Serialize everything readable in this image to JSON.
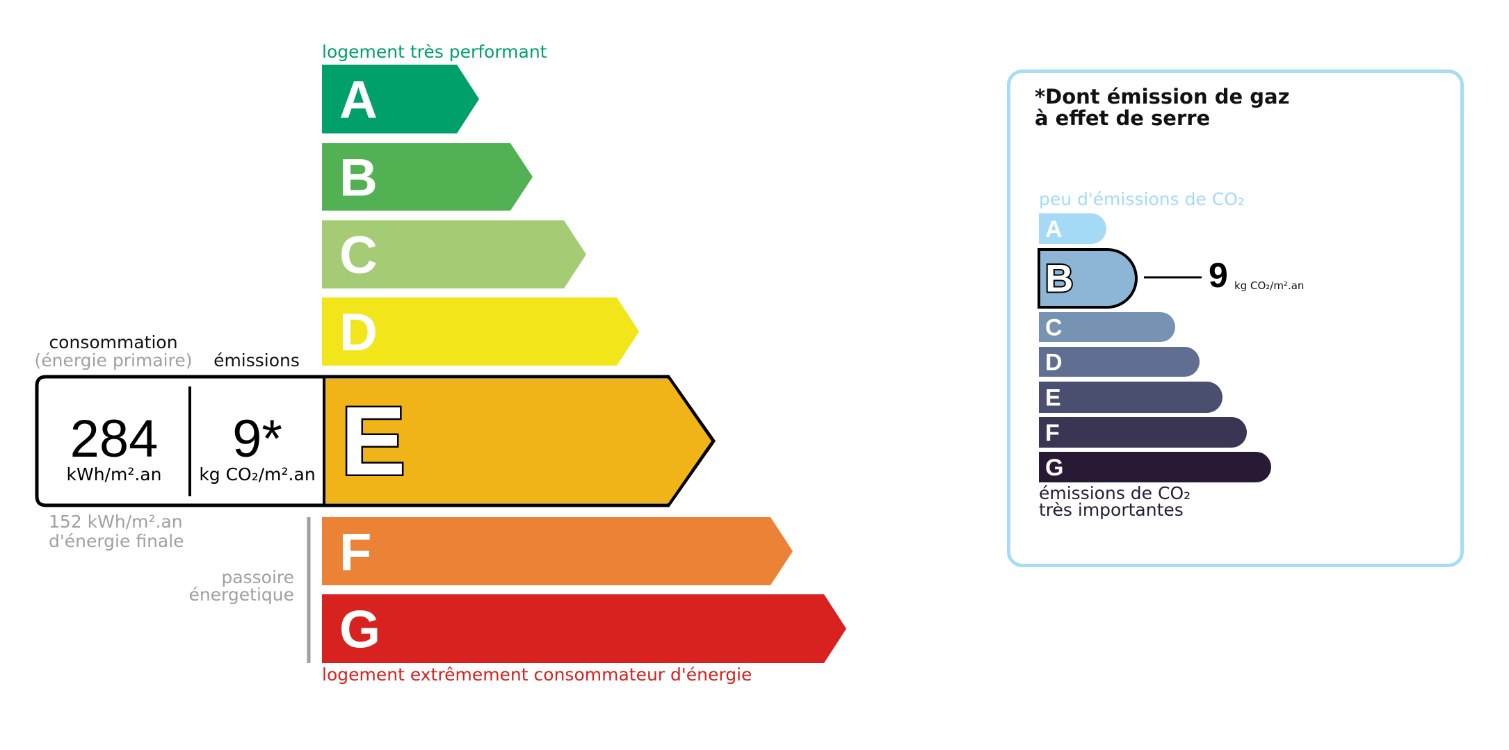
{
  "energy": {
    "top_label": "logement très performant",
    "bottom_label": "logement extrêmement consommateur d'énergie",
    "classes": [
      {
        "letter": "A",
        "color": "#00a06a"
      },
      {
        "letter": "B",
        "color": "#52b153"
      },
      {
        "letter": "C",
        "color": "#a5cc74"
      },
      {
        "letter": "D",
        "color": "#f2e61b"
      },
      {
        "letter": "E",
        "color": "#f0b419"
      },
      {
        "letter": "F",
        "color": "#eb8235"
      },
      {
        "letter": "G",
        "color": "#d7221f"
      }
    ],
    "current_class": "E",
    "consumption_label": "consommation",
    "consumption_sublabel": "(énergie primaire)",
    "emissions_label": "émissions",
    "consumption_value": "284",
    "consumption_unit": "kWh/m².an",
    "emissions_value": "9*",
    "emissions_unit": "kg CO₂/m².an",
    "final_energy_line1": "152 kWh/m².an",
    "final_energy_line2": "d'énergie finale",
    "passoire_line1": "passoire",
    "passoire_line2": "énergetique"
  },
  "ges": {
    "title_line1": "*Dont émission de gaz",
    "title_line2": "à effet de serre",
    "top_label": "peu d'émissions de CO₂",
    "bottom_label_line1": "émissions de CO₂",
    "bottom_label_line2": "très importantes",
    "classes": [
      {
        "letter": "A",
        "color": "#a4daf6"
      },
      {
        "letter": "B",
        "color": "#8db5d5"
      },
      {
        "letter": "C",
        "color": "#7693b4"
      },
      {
        "letter": "D",
        "color": "#5f6e91"
      },
      {
        "letter": "E",
        "color": "#4b4f6f"
      },
      {
        "letter": "F",
        "color": "#393552"
      },
      {
        "letter": "G",
        "color": "#281a35"
      }
    ],
    "current_class": "B",
    "value": "9",
    "unit": "kg CO₂/m².an"
  }
}
